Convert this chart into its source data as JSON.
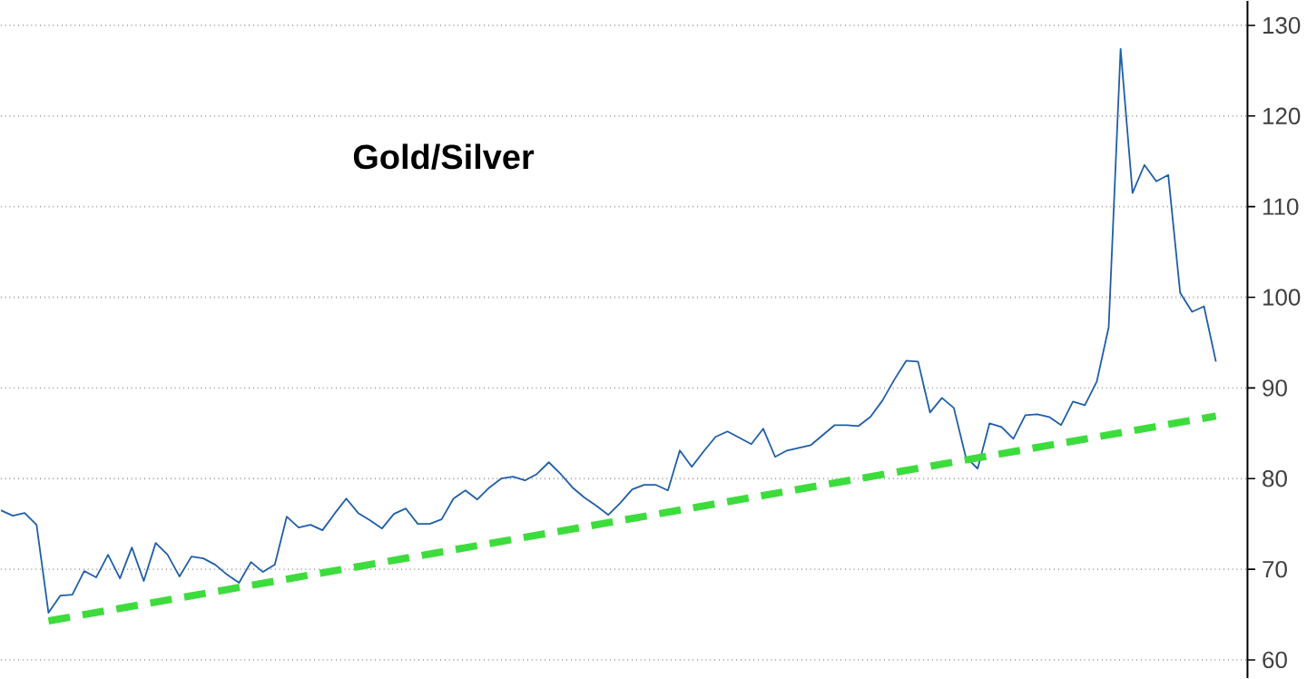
{
  "chart_data": {
    "type": "line",
    "title": "Gold/Silver",
    "categories": [
      null,
      null,
      null,
      null,
      null,
      null,
      null,
      null,
      null,
      null,
      null,
      null,
      null,
      null,
      null,
      null,
      null,
      null,
      null,
      null,
      null,
      null,
      null,
      null,
      null,
      null,
      null,
      null,
      null,
      null,
      null,
      null,
      null,
      null,
      null,
      null,
      null,
      null,
      null,
      null,
      null,
      null,
      null,
      null,
      null,
      null,
      null,
      null,
      null,
      null,
      null,
      null,
      null,
      null,
      null,
      null,
      null,
      null,
      null,
      null,
      null,
      null,
      null,
      null,
      null,
      null,
      null,
      null,
      null,
      null,
      null,
      null,
      null,
      null,
      null,
      null,
      null,
      null,
      null,
      null,
      null,
      null,
      null,
      null,
      null,
      null,
      null,
      null,
      null,
      null,
      null,
      null,
      null,
      null,
      null,
      null,
      null,
      null,
      null,
      null,
      null,
      null,
      null
    ],
    "ylim": [
      58,
      132.7
    ],
    "yticks": [
      60,
      70,
      80,
      90,
      100,
      110,
      120,
      130
    ],
    "grid": "y",
    "tick_labels": "y",
    "series": [
      {
        "color": "#1f5ea8",
        "line_style": "solid",
        "values": [
          76.5,
          75.9,
          76.2,
          74.9,
          65.2,
          67.1,
          67.2,
          69.8,
          69.1,
          71.6,
          69.0,
          72.4,
          68.7,
          72.9,
          71.6,
          69.2,
          71.4,
          71.2,
          70.5,
          69.4,
          68.5,
          70.8,
          69.7,
          70.5,
          75.8,
          74.6,
          74.9,
          74.3,
          76.1,
          77.8,
          76.2,
          75.4,
          74.5,
          76.1,
          76.7,
          75.0,
          75.0,
          75.5,
          77.8,
          78.7,
          77.7,
          79.0,
          80.0,
          80.2,
          79.8,
          80.5,
          81.8,
          80.5,
          79.0,
          77.9,
          77.0,
          76.0,
          77.3,
          78.8,
          79.3,
          79.3,
          78.7,
          83.1,
          81.3,
          83.0,
          84.6,
          85.2,
          84.5,
          83.8,
          85.5,
          82.4,
          83.1,
          83.4,
          83.7,
          84.8,
          85.9,
          85.9,
          85.8,
          86.8,
          88.6,
          90.9,
          93.0,
          92.9,
          87.3,
          88.9,
          87.8,
          82.4,
          81.1,
          86.1,
          85.7,
          84.4,
          87.0,
          87.1,
          86.8,
          85.9,
          88.5,
          88.1,
          90.7,
          96.7,
          127.4,
          111.5,
          114.6,
          112.8,
          113.5,
          100.5,
          98.4,
          99.0,
          92.9
        ]
      },
      {
        "type": "line",
        "color": "#3ddc3d",
        "line_style": "dashed",
        "values": [
          null,
          null,
          null,
          null,
          64.3,
          null,
          null,
          null,
          null,
          null,
          null,
          null,
          null,
          null,
          null,
          null,
          null,
          null,
          null,
          null,
          null,
          null,
          null,
          null,
          null,
          null,
          null,
          null,
          null,
          null,
          null,
          null,
          null,
          null,
          null,
          null,
          null,
          null,
          null,
          null,
          null,
          null,
          null,
          null,
          null,
          null,
          null,
          null,
          null,
          null,
          null,
          null,
          null,
          null,
          null,
          null,
          null,
          null,
          null,
          null,
          null,
          null,
          null,
          null,
          null,
          null,
          null,
          null,
          null,
          null,
          null,
          null,
          null,
          null,
          null,
          null,
          null,
          null,
          null,
          null,
          null,
          null,
          null,
          null,
          null,
          null,
          null,
          null,
          null,
          null,
          null,
          null,
          null,
          null,
          null,
          null,
          null,
          null,
          null,
          null,
          null,
          null,
          86.9
        ]
      }
    ]
  }
}
